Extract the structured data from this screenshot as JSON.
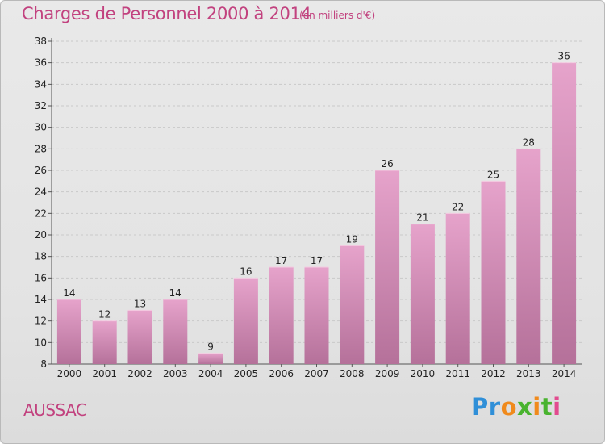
{
  "header": {
    "title": "Charges de Personnel 2000 à 2014",
    "subtitle": "(en milliers d'€)"
  },
  "footer": {
    "commune": "AUSSAC",
    "logo_letters": [
      {
        "ch": "P",
        "color": "#2f8fd8"
      },
      {
        "ch": "r",
        "color": "#2f8fd8"
      },
      {
        "ch": "o",
        "color": "#f08a1c"
      },
      {
        "ch": "x",
        "color": "#49b32f"
      },
      {
        "ch": "i",
        "color": "#f08a1c"
      },
      {
        "ch": "t",
        "color": "#49b32f"
      },
      {
        "ch": "i",
        "color": "#e24b8f"
      }
    ]
  },
  "chart_data": {
    "type": "bar",
    "categories": [
      "2000",
      "2001",
      "2002",
      "2003",
      "2004",
      "2005",
      "2006",
      "2007",
      "2008",
      "2009",
      "2010",
      "2011",
      "2012",
      "2013",
      "2014"
    ],
    "values": [
      14,
      12,
      13,
      14,
      9,
      16,
      17,
      17,
      19,
      26,
      21,
      22,
      25,
      28,
      36
    ],
    "title": "Charges de Personnel 2000 à 2014",
    "ylim": [
      8,
      38
    ],
    "yticks": [
      8,
      10,
      12,
      14,
      16,
      18,
      20,
      22,
      24,
      26,
      28,
      30,
      32,
      34,
      36,
      38
    ],
    "grid": true,
    "bar_color_top": "#e6a3cb",
    "bar_color_bottom": "#b5719a"
  }
}
